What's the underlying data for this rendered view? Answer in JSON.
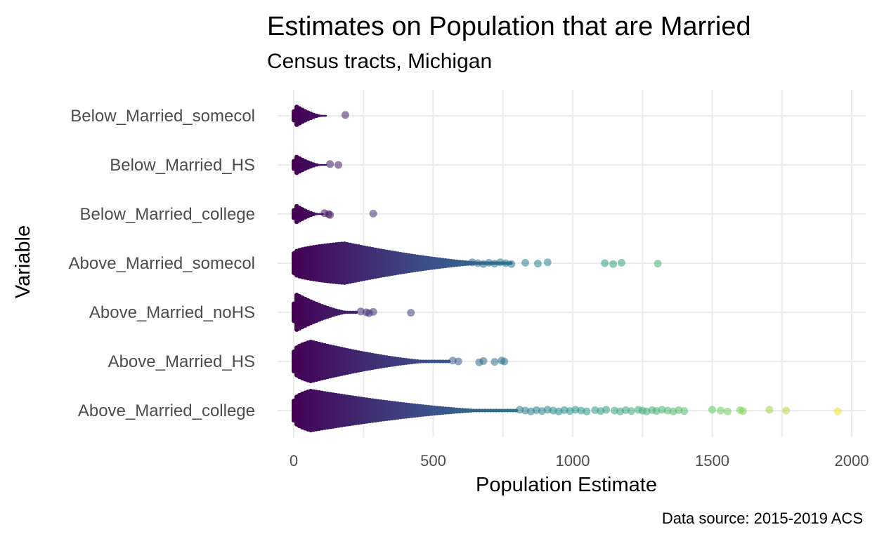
{
  "chart_data": {
    "type": "scatter",
    "title": "Estimates on Population that are Married",
    "subtitle": "Census tracts, Michigan",
    "xlabel": "Population Estimate",
    "ylabel": "Variable",
    "caption": "Data source: 2015-2019 ACS",
    "xlim": [
      0,
      2000
    ],
    "x_ticks": [
      0,
      500,
      1000,
      1500,
      2000
    ],
    "x_tick_labels": [
      "0",
      "500",
      "1000",
      "1500",
      "2000"
    ],
    "grid": true,
    "color_scale": "viridis",
    "color_stops": [
      "#440154",
      "#3b528b",
      "#21908c",
      "#5dc863",
      "#fde725"
    ],
    "categories": [
      "Below_Married_somecol",
      "Below_Married_HS",
      "Below_Married_college",
      "Above_Married_somecol",
      "Above_Married_noHS",
      "Above_Married_HS",
      "Above_Married_college"
    ],
    "series": [
      {
        "category": "Below_Married_somecol",
        "bulk_max": 120,
        "peak": 5,
        "width": 0.55,
        "outliers": [
          185
        ]
      },
      {
        "category": "Below_Married_HS",
        "bulk_max": 115,
        "peak": 5,
        "width": 0.5,
        "outliers": [
          130,
          160
        ]
      },
      {
        "category": "Below_Married_college",
        "bulk_max": 105,
        "peak": 5,
        "width": 0.5,
        "outliers": [
          110,
          125,
          130,
          285
        ]
      },
      {
        "category": "Above_Married_somecol",
        "bulk_max": 780,
        "peak": 180,
        "width": 1.0,
        "outliers": [
          640,
          660,
          680,
          700,
          720,
          740,
          760,
          780,
          830,
          875,
          910,
          1115,
          1145,
          1175,
          1305
        ]
      },
      {
        "category": "Above_Married_noHS",
        "bulk_max": 230,
        "peak": 10,
        "width": 0.9,
        "outliers": [
          240,
          260,
          270,
          285,
          420
        ]
      },
      {
        "category": "Above_Married_HS",
        "bulk_max": 560,
        "peak": 60,
        "width": 1.0,
        "outliers": [
          570,
          590,
          665,
          680,
          720,
          745,
          755
        ]
      },
      {
        "category": "Above_Married_college",
        "bulk_max": 800,
        "peak": 60,
        "width": 1.0,
        "outliers": [
          810,
          830,
          850,
          870,
          890,
          910,
          930,
          950,
          970,
          990,
          1010,
          1030,
          1050,
          1080,
          1100,
          1120,
          1150,
          1170,
          1190,
          1210,
          1235,
          1250,
          1265,
          1285,
          1300,
          1320,
          1340,
          1360,
          1380,
          1400,
          1500,
          1530,
          1555,
          1600,
          1610,
          1705,
          1765,
          1950
        ]
      }
    ]
  }
}
